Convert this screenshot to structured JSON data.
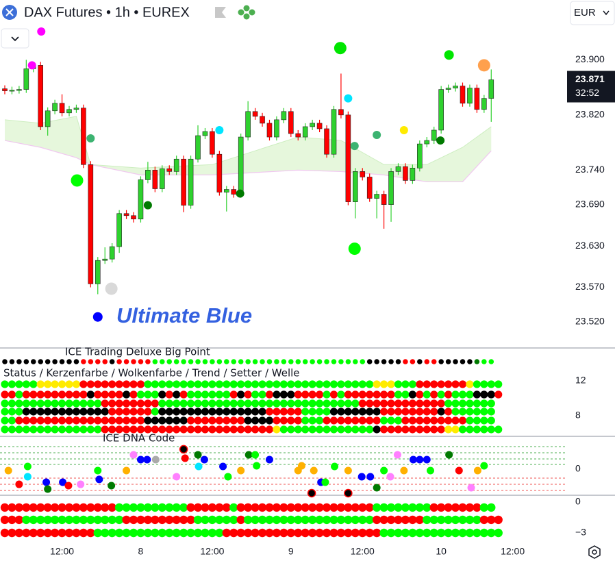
{
  "header": {
    "title": "DAX Futures • 1h • EUREX",
    "currency": "EUR"
  },
  "chart_data": {
    "type": "candlestick",
    "x": [
      0,
      1,
      2,
      3,
      4,
      5,
      6,
      7,
      8,
      9,
      10,
      11,
      12,
      13,
      14,
      15,
      16,
      17,
      18,
      19,
      20,
      21,
      22,
      23,
      24,
      25,
      26,
      27,
      28,
      29,
      30,
      31,
      32,
      33,
      34,
      35,
      36,
      37,
      38,
      39,
      40,
      41,
      42,
      43,
      44,
      45,
      46,
      47,
      48,
      49,
      50,
      51,
      52,
      53,
      54,
      55,
      56,
      57,
      58,
      59,
      60,
      61,
      62,
      63,
      64,
      65,
      66,
      67,
      68
    ],
    "open": [
      23.858,
      23.855,
      23.856,
      23.857,
      23.887,
      23.892,
      23.803,
      23.826,
      23.837,
      23.823,
      23.828,
      23.83,
      23.748,
      23.575,
      23.609,
      23.611,
      23.629,
      23.677,
      23.674,
      23.669,
      23.726,
      23.74,
      23.713,
      23.742,
      23.738,
      23.756,
      23.689,
      23.756,
      23.79,
      23.796,
      23.763,
      23.708,
      23.712,
      23.705,
      23.788,
      23.825,
      23.818,
      23.808,
      23.788,
      23.813,
      23.825,
      23.793,
      23.788,
      23.803,
      23.808,
      23.8,
      23.763,
      23.828,
      23.82,
      23.694,
      23.738,
      23.73,
      23.699,
      23.705,
      23.69,
      23.738,
      23.745,
      23.725,
      23.743,
      23.778,
      23.783,
      23.798,
      23.857,
      23.859,
      23.862,
      23.837,
      23.859,
      23.828,
      23.844
    ],
    "high": [
      23.863,
      23.861,
      23.862,
      23.9,
      23.897,
      23.897,
      23.831,
      23.842,
      23.85,
      23.833,
      23.835,
      23.835,
      23.753,
      23.614,
      23.628,
      23.634,
      23.682,
      23.682,
      23.679,
      23.731,
      23.752,
      23.745,
      23.747,
      23.747,
      23.761,
      23.761,
      23.761,
      23.805,
      23.801,
      23.801,
      23.768,
      23.717,
      23.717,
      23.793,
      23.84,
      23.83,
      23.823,
      23.813,
      23.818,
      23.83,
      23.83,
      23.798,
      23.808,
      23.813,
      23.813,
      23.805,
      23.833,
      23.88,
      23.825,
      23.743,
      23.743,
      23.735,
      23.71,
      23.71,
      23.743,
      23.75,
      23.75,
      23.748,
      23.783,
      23.788,
      23.803,
      23.862,
      23.864,
      23.867,
      23.867,
      23.864,
      23.864,
      23.849,
      23.886
    ],
    "low": [
      23.85,
      23.85,
      23.851,
      23.852,
      23.882,
      23.798,
      23.79,
      23.821,
      23.818,
      23.818,
      23.823,
      23.743,
      23.57,
      23.56,
      23.604,
      23.606,
      23.62,
      23.669,
      23.664,
      23.664,
      23.721,
      23.708,
      23.708,
      23.733,
      23.733,
      23.679,
      23.684,
      23.751,
      23.785,
      23.758,
      23.703,
      23.68,
      23.7,
      23.7,
      23.783,
      23.813,
      23.803,
      23.783,
      23.783,
      23.808,
      23.788,
      23.783,
      23.783,
      23.798,
      23.795,
      23.758,
      23.758,
      23.815,
      23.689,
      23.67,
      23.725,
      23.694,
      23.67,
      23.655,
      23.665,
      23.733,
      23.72,
      23.72,
      23.738,
      23.773,
      23.778,
      23.793,
      23.852,
      23.854,
      23.832,
      23.832,
      23.823,
      23.823,
      23.81
    ],
    "close": [
      23.855,
      23.856,
      23.857,
      23.887,
      23.892,
      23.803,
      23.826,
      23.837,
      23.823,
      23.828,
      23.83,
      23.748,
      23.575,
      23.609,
      23.611,
      23.629,
      23.677,
      23.674,
      23.669,
      23.726,
      23.74,
      23.713,
      23.742,
      23.738,
      23.756,
      23.689,
      23.756,
      23.79,
      23.796,
      23.763,
      23.708,
      23.712,
      23.705,
      23.788,
      23.825,
      23.818,
      23.808,
      23.788,
      23.813,
      23.825,
      23.793,
      23.788,
      23.803,
      23.808,
      23.8,
      23.763,
      23.828,
      23.82,
      23.694,
      23.738,
      23.73,
      23.699,
      23.705,
      23.69,
      23.738,
      23.745,
      23.725,
      23.743,
      23.778,
      23.783,
      23.798,
      23.857,
      23.859,
      23.862,
      23.837,
      23.859,
      23.828,
      23.844,
      23.871
    ],
    "up_color": "#2ed12e",
    "down_color": "#ff0000",
    "xlim": [
      -0.67,
      78.6
    ],
    "xticks": [
      {
        "value": 8,
        "label": "12:00"
      },
      {
        "value": 19,
        "label": "8"
      },
      {
        "value": 29,
        "label": "12:00"
      },
      {
        "value": 40,
        "label": "9"
      },
      {
        "value": 50,
        "label": "12:00"
      },
      {
        "value": 61,
        "label": "10"
      },
      {
        "value": 71,
        "label": "12:00"
      }
    ],
    "ylim": [
      23.485,
      23.947
    ],
    "yticks": [
      {
        "value": 23.9,
        "label": "23.900"
      },
      {
        "value": 23.82,
        "label": "23.820"
      },
      {
        "value": 23.74,
        "label": "23.740"
      },
      {
        "value": 23.69,
        "label": "23.690"
      },
      {
        "value": 23.63,
        "label": "23.630"
      },
      {
        "value": 23.57,
        "label": "23.570"
      },
      {
        "value": 23.52,
        "label": "23.520"
      }
    ],
    "last_price": 23.871,
    "countdown": "32:52",
    "cloud": {
      "x": [
        0,
        5,
        10,
        12,
        19,
        29,
        41,
        47,
        53,
        59,
        64,
        68
      ],
      "upper": [
        23.813,
        23.808,
        23.818,
        23.748,
        23.743,
        23.748,
        23.788,
        23.783,
        23.748,
        23.748,
        23.773,
        23.803
      ],
      "lower": [
        23.783,
        23.773,
        23.758,
        23.748,
        23.733,
        23.733,
        23.74,
        23.738,
        23.733,
        23.723,
        23.723,
        23.768
      ],
      "color": "#e6f7dc",
      "line_color": "#f0c8f0"
    },
    "signals": {
      "x": [
        5.1,
        3.8,
        46.9,
        62.1,
        67.0,
        48.0,
        30.0,
        55.8,
        52.0,
        60.9,
        48.9,
        10.1,
        20.0,
        32.9,
        48.9,
        14.9,
        13.0,
        12.0
      ],
      "values": [
        23.941,
        23.892,
        23.917,
        23.907,
        23.892,
        23.844,
        23.798,
        23.798,
        23.791,
        23.783,
        23.775,
        23.725,
        23.689,
        23.706,
        23.626,
        23.568,
        23.527,
        23.786
      ],
      "sizes": [
        6,
        6,
        9,
        7,
        9,
        6,
        6,
        6,
        6,
        6,
        6,
        9,
        6,
        6,
        9,
        9,
        7,
        6
      ],
      "colors": [
        "#ff00ff",
        "#ff00ff",
        "#00e600",
        "#00e600",
        "#ffa04d",
        "#00e5ff",
        "#00e5ff",
        "#ffeb00",
        "#3cb371",
        "#007a00",
        "#3cb371",
        "#00ff00",
        "#007a00",
        "#007a00",
        "#00ff00",
        "#d9d9d9",
        "#0000ff",
        "#3cb371"
      ]
    },
    "annotation": "Ultimate Blue"
  },
  "indicators": {
    "palette": {
      "g": "#00ff00",
      "r": "#ff0000",
      "k": "#000000",
      "y": "#ffeb00",
      "d": "#007a00",
      "o": "#ffb000",
      "c": "#00e5ff",
      "b": "#0000ff",
      "m": "#ff80ff",
      "a": "#aaaaaa"
    },
    "panels": [
      {
        "title": "ICE Trading Deluxe Big Point",
        "rows": [
          "kkkkkkkkkkkrrrrkrrrrrggggggggggggggggggggggggggggggkkkkkrrkrrkkkkkdgg"
        ]
      },
      {
        "title": "Status / Kerzenfarbe / Wolkenfarbe / Trend / Setter / Welle",
        "ylim": [
          5.8,
          12.47
        ],
        "yticks": [
          12,
          8
        ],
        "row_values": [
          11.61,
          10.43,
          9.41,
          8.47,
          7.45,
          6.43
        ],
        "rows": [
          "gggggyyyyyyrrrrrrrrrggggggggggggggggggggggggggggggggyyygggrrrrrrrygggg",
          "rrgrrrrrrrrrkrrrrkrgggkrkrggggggrkrggrkkkrrrrgrgrrrrrrrggkrgrgrgggkkkr",
          "ggggggggggggggrrrrrrrrggggggggggggggggggggggggggggrrrrrrrrrrrrggggggg",
          "gggkkkkkkkkkkkkrrrrrrgkkkkkkkkkkkkkkkrrrrrggggkkkkkkkrrrrrrrrkrgggggg",
          "ggrrrrrrrrrrrrrrrrrrkkkkkkrrrrrrrrkkkkrrrrgggrrrrrrrrgggrrrrrrrrrgggg",
          "ggggggggggggggrrrrrrrrrrrrrrrrrrrrrrrrygggggggggggggkrrrrrrrrryygggggg"
        ]
      },
      {
        "title": "ICE DNA Code",
        "ylim": [
          -2.7,
          3.28
        ],
        "yticks": [
          0
        ],
        "points": [
          [
            0.5,
            -0.15,
            "o"
          ],
          [
            2.0,
            -1.61,
            "r"
          ],
          [
            3.2,
            0.29,
            "g"
          ],
          [
            3.2,
            -0.8,
            "c"
          ],
          [
            5.8,
            -1.39,
            "b"
          ],
          [
            6.0,
            -2.12,
            "d"
          ],
          [
            8.1,
            -1.39,
            "b"
          ],
          [
            8.9,
            -1.75,
            "r"
          ],
          [
            10.6,
            -1.61,
            "m"
          ],
          [
            13.0,
            -0.15,
            "g"
          ],
          [
            13.2,
            -1.09,
            "b"
          ],
          [
            14.9,
            -1.75,
            "d"
          ],
          [
            17.0,
            -0.15,
            "o"
          ],
          [
            18.0,
            1.53,
            "m"
          ],
          [
            19.0,
            1.02,
            "b"
          ],
          [
            19.9,
            1.02,
            "b"
          ],
          [
            21.1,
            1.02,
            "a"
          ],
          [
            24.0,
            -0.8,
            "m"
          ],
          [
            25.2,
            1.17,
            "r"
          ],
          [
            25.0,
            2.12,
            "k"
          ],
          [
            27.0,
            1.53,
            "d"
          ],
          [
            27.1,
            0.29,
            "c"
          ],
          [
            27.9,
            1.02,
            "b"
          ],
          [
            30.5,
            0.29,
            "b"
          ],
          [
            31.2,
            -0.8,
            "g"
          ],
          [
            33.0,
            -0.15,
            "o"
          ],
          [
            34.1,
            1.53,
            "d"
          ],
          [
            35.0,
            1.53,
            "g"
          ],
          [
            35.2,
            0.36,
            "g"
          ],
          [
            37.0,
            1.02,
            "b"
          ],
          [
            41.0,
            -0.15,
            "o"
          ],
          [
            41.5,
            0.36,
            "o"
          ],
          [
            43.2,
            -0.15,
            "o"
          ],
          [
            42.9,
            -2.55,
            "k"
          ],
          [
            44.2,
            -1.39,
            "b"
          ],
          [
            44.8,
            -1.39,
            "g"
          ],
          [
            46.1,
            0.29,
            "g"
          ],
          [
            48.0,
            -0.15,
            "o"
          ],
          [
            48.0,
            -2.55,
            "k"
          ],
          [
            49.9,
            -0.8,
            "b"
          ],
          [
            51.1,
            -0.8,
            "b"
          ],
          [
            52.0,
            -1.97,
            "d"
          ],
          [
            53.0,
            -0.15,
            "g"
          ],
          [
            53.9,
            -0.8,
            "m"
          ],
          [
            54.9,
            1.53,
            "m"
          ],
          [
            55.8,
            -0.15,
            "o"
          ],
          [
            57.1,
            1.02,
            "b"
          ],
          [
            58.0,
            1.02,
            "b"
          ],
          [
            59.0,
            1.02,
            "b"
          ],
          [
            59.5,
            -0.15,
            "g"
          ],
          [
            62.1,
            1.53,
            "d"
          ],
          [
            63.5,
            -0.15,
            "r"
          ],
          [
            65.2,
            -1.97,
            "m"
          ],
          [
            66.1,
            -0.15,
            "o"
          ],
          [
            67.0,
            0.36,
            "g"
          ]
        ]
      },
      {
        "ylim": [
          -3.8,
          0.53
        ],
        "yticks": [
          0,
          {
            "value": -3,
            "label": "−3"
          }
        ],
        "row_values": [
          -0.53,
          -1.73,
          -3
        ],
        "rows": [
          "rrrrrrrrrrrrrrrrggggggggggrrrrrrgrrrrrrrrrrrrrrrrrrrggggggggrrrrrrrgg",
          "rrrggggggggggggggrrrrrrrrrrggggggrggggggggggggggggggrrrrrrrggggggggrrr",
          "rrrrrrrrrrrrrggggggggggggggggggrrrrrrrrrrrrrrrrrrrrrrggggggggggggggggg"
        ]
      }
    ]
  }
}
